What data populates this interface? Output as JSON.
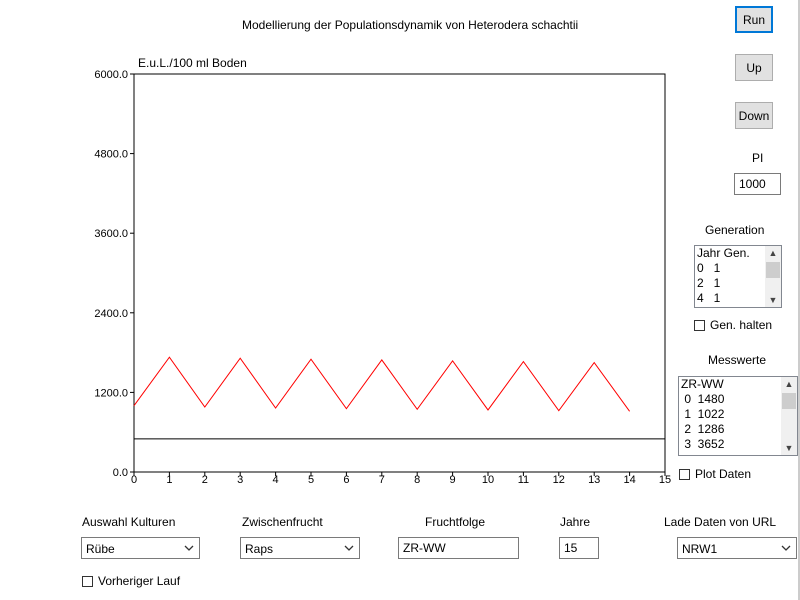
{
  "title": "Modellierung der Populationsdynamik von Heterodera schachtii",
  "buttons": {
    "run": "Run",
    "up": "Up",
    "down": "Down"
  },
  "pi": {
    "label": "PI",
    "value": "1000"
  },
  "generation": {
    "label": "Generation",
    "rows": [
      "Jahr Gen.",
      "0   1",
      "2   1",
      "4   1"
    ],
    "hold_label": "Gen. halten"
  },
  "messwerte": {
    "label": "Messwerte",
    "rows": [
      "ZR-WW",
      " 0  1480",
      " 1  1022",
      " 2  1286",
      " 3  3652"
    ],
    "plot_label": "Plot Daten"
  },
  "bottom": {
    "kulturen_label": "Auswahl Kulturen",
    "kulturen_value": "Rübe",
    "zwischenfrucht_label": "Zwischenfrucht",
    "zwischenfrucht_value": "Raps",
    "fruchtfolge_label": "Fruchtfolge",
    "fruchtfolge_value": "ZR-WW",
    "jahre_label": "Jahre",
    "jahre_value": "15",
    "url_label": "Lade Daten von URL",
    "url_value": "NRW1",
    "vorheriger_label": "Vorheriger Lauf"
  },
  "icons": {
    "chevron": "chevron-down-icon"
  },
  "chart_data": {
    "type": "line",
    "ylabel": "E.u.L./100 ml Boden",
    "xlabel": "",
    "xlim": [
      0,
      15
    ],
    "ylim": [
      0,
      6000
    ],
    "x_ticks": [
      0,
      1,
      2,
      3,
      4,
      5,
      6,
      7,
      8,
      9,
      10,
      11,
      12,
      13,
      14,
      15
    ],
    "y_ticks": [
      "0.0",
      "1200.0",
      "2400.0",
      "3600.0",
      "4800.0",
      "6000.0"
    ],
    "series": [
      {
        "color": "#ff0000",
        "x": [
          0,
          1,
          2,
          3,
          4,
          5,
          6,
          7,
          8,
          9,
          10,
          11,
          12,
          13,
          14
        ],
        "y": [
          1000,
          1730,
          980,
          1715,
          965,
          1700,
          955,
          1690,
          945,
          1675,
          935,
          1665,
          925,
          1650,
          915
        ]
      },
      {
        "color": "#000000",
        "x": [
          0,
          15
        ],
        "y": [
          500,
          500
        ]
      }
    ]
  }
}
